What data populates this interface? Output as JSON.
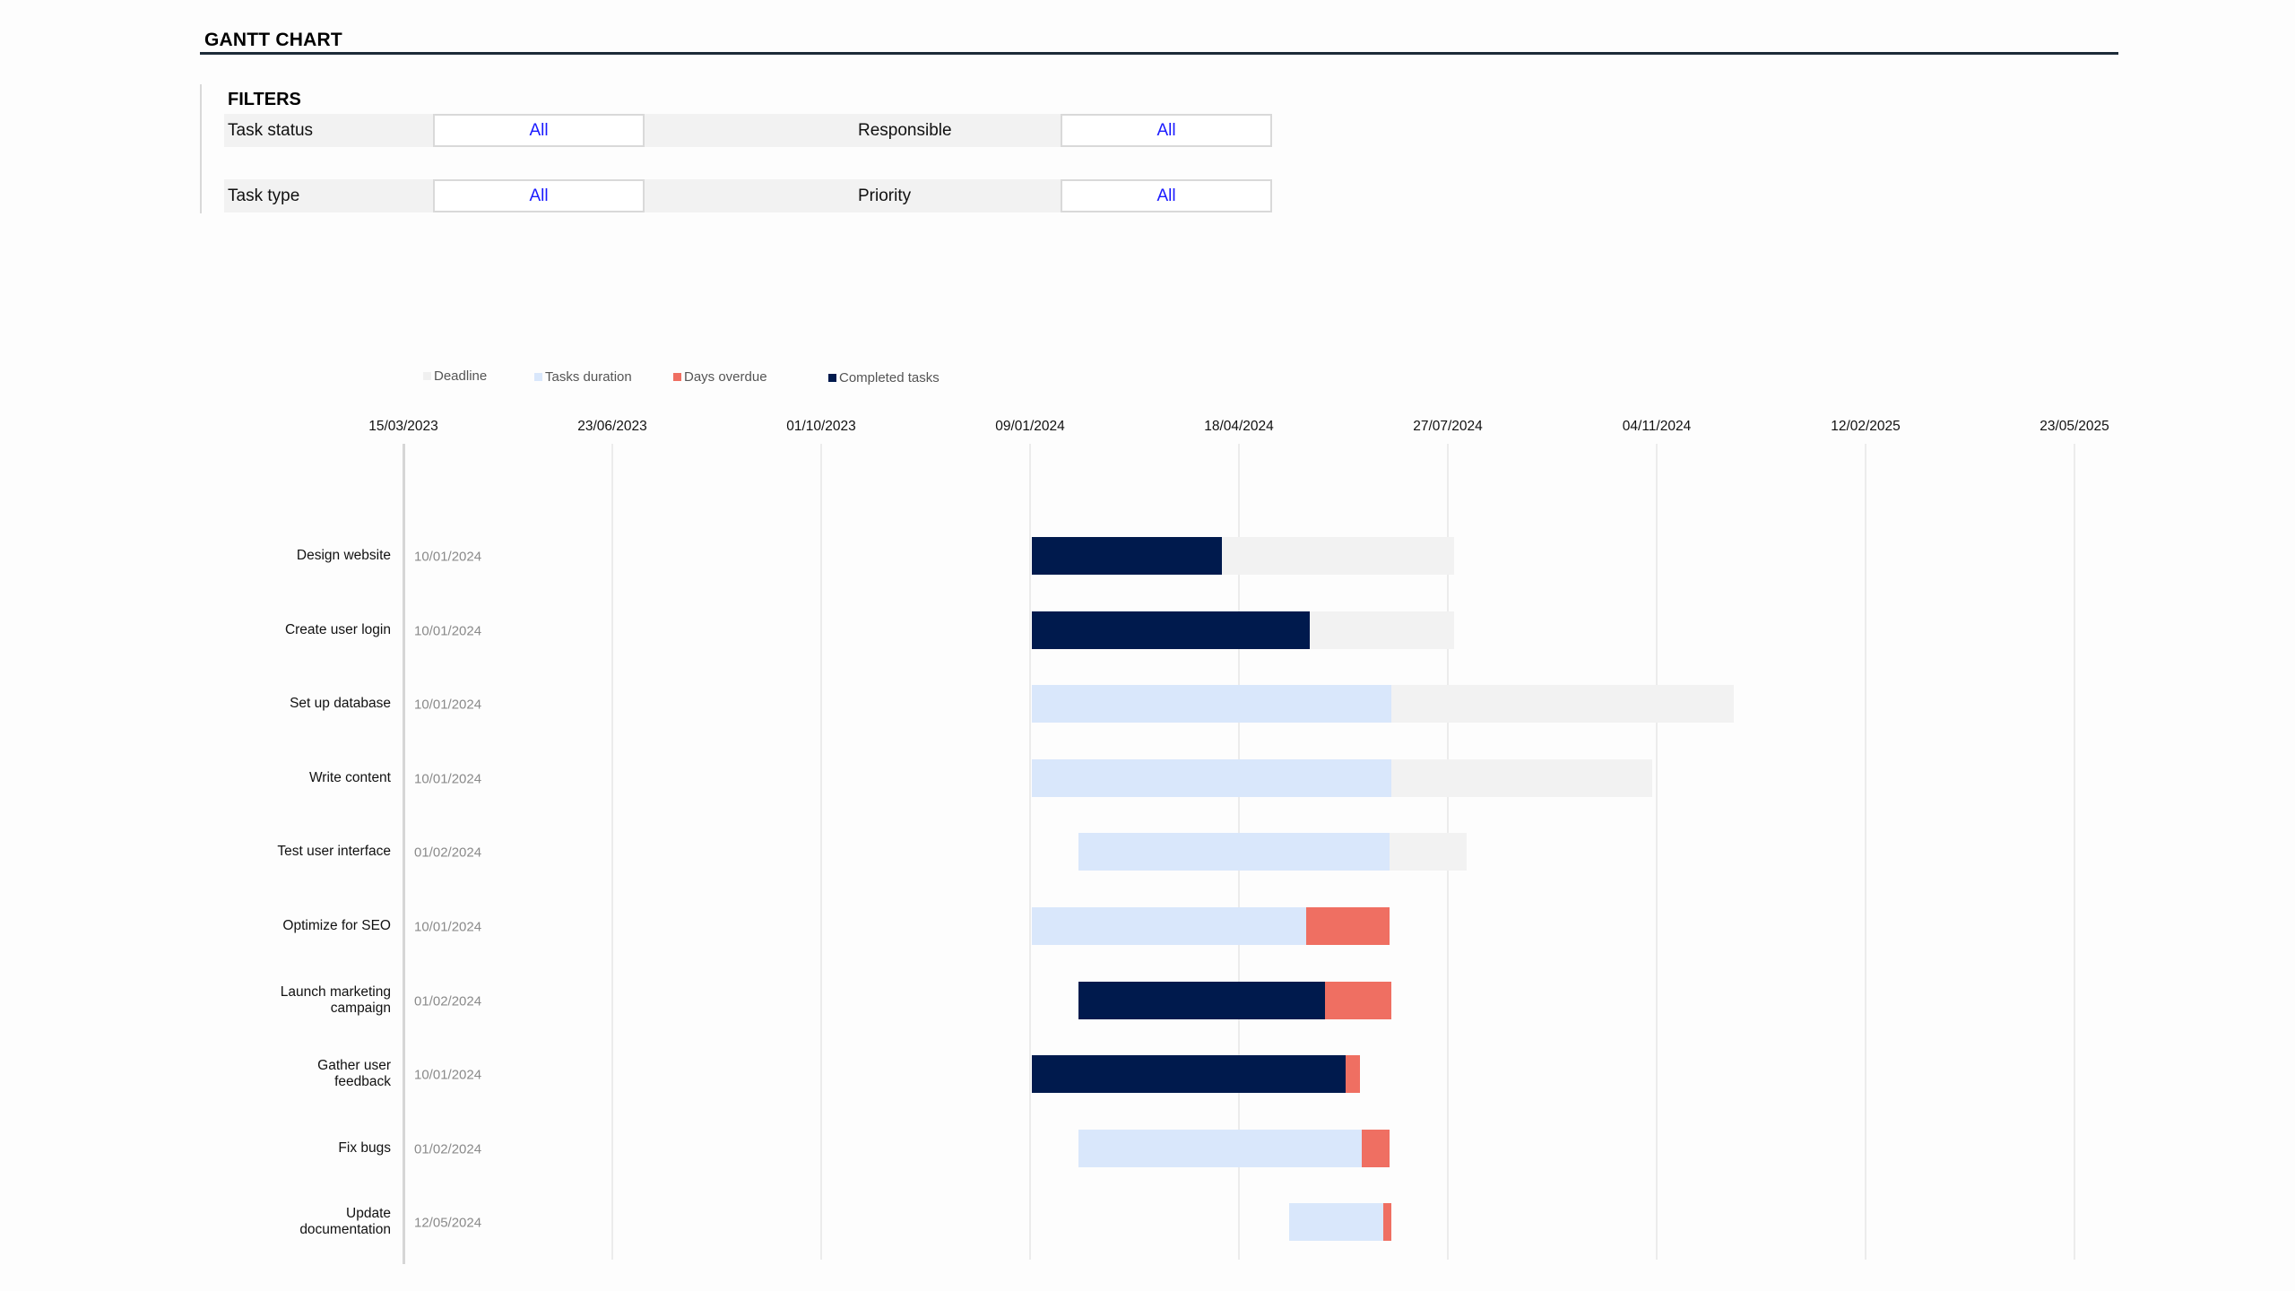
{
  "header": {
    "title": "GANTT CHART"
  },
  "filters": {
    "heading": "FILTERS",
    "items": [
      {
        "label": "Task status",
        "value": "All"
      },
      {
        "label": "Responsible",
        "value": "All"
      },
      {
        "label": "Task type",
        "value": "All"
      },
      {
        "label": "Priority",
        "value": "All"
      }
    ]
  },
  "colors": {
    "deadline": "#f2f2f2",
    "tasks_duration": "#d9e7fb",
    "days_overdue": "#ef6f62",
    "completed_tasks": "#001a4d",
    "filter_value": "#1a1aff"
  },
  "chart_data": {
    "type": "bar",
    "subtype": "gantt-stacked-horizontal",
    "title": "GANTT CHART",
    "legend": [
      {
        "name": "Deadline",
        "color": "#f2f2f2"
      },
      {
        "name": "Tasks duration",
        "color": "#d9e7fb"
      },
      {
        "name": "Days overdue",
        "color": "#ef6f62"
      },
      {
        "name": "Completed tasks",
        "color": "#001a4d"
      }
    ],
    "legend_position": "top",
    "x_axis": {
      "type": "date",
      "position": "top",
      "ticks": [
        "15/03/2023",
        "23/06/2023",
        "01/10/2023",
        "09/01/2024",
        "18/04/2024",
        "27/07/2024",
        "04/11/2024",
        "12/02/2025",
        "23/05/2025"
      ],
      "tick_interval_days": 100,
      "range": [
        "15/03/2023",
        "23/05/2025"
      ],
      "grid": true
    },
    "categories": [
      "Design website",
      "Create user login",
      "Set up database",
      "Write content",
      "Test user interface",
      "Optimize for SEO",
      "Launch marketing campaign",
      "Gather user feedback",
      "Fix bugs",
      "Update documentation"
    ],
    "start_dates": [
      "10/01/2024",
      "10/01/2024",
      "10/01/2024",
      "10/01/2024",
      "01/02/2024",
      "10/01/2024",
      "01/02/2024",
      "10/01/2024",
      "01/02/2024",
      "12/05/2024"
    ],
    "start_offset_days": [
      301,
      301,
      301,
      301,
      323,
      301,
      323,
      301,
      323,
      424
    ],
    "series": [
      {
        "name": "Completed tasks",
        "values": [
          91,
          133,
          0,
          0,
          0,
          0,
          118,
          150,
          0,
          0
        ]
      },
      {
        "name": "Tasks duration",
        "values": [
          0,
          0,
          172,
          172,
          149,
          131,
          0,
          0,
          136,
          45
        ]
      },
      {
        "name": "Days overdue",
        "values": [
          0,
          0,
          0,
          0,
          0,
          40,
          32,
          7,
          13,
          4
        ]
      },
      {
        "name": "Deadline",
        "values": [
          111,
          69,
          164,
          125,
          37,
          0,
          0,
          0,
          0,
          0
        ]
      }
    ],
    "xlabel": "",
    "ylabel": ""
  },
  "tasks": [
    {
      "name": "Design website",
      "name_lines": [
        "Design website"
      ],
      "start": "10/01/2024"
    },
    {
      "name": "Create user login",
      "name_lines": [
        "Create user login"
      ],
      "start": "10/01/2024"
    },
    {
      "name": "Set up database",
      "name_lines": [
        "Set up database"
      ],
      "start": "10/01/2024"
    },
    {
      "name": "Write content",
      "name_lines": [
        "Write content"
      ],
      "start": "10/01/2024"
    },
    {
      "name": "Test user interface",
      "name_lines": [
        "Test user interface"
      ],
      "start": "01/02/2024"
    },
    {
      "name": "Optimize for SEO",
      "name_lines": [
        "Optimize for SEO"
      ],
      "start": "10/01/2024"
    },
    {
      "name": "Launch marketing campaign",
      "name_lines": [
        "Launch marketing",
        "campaign"
      ],
      "start": "01/02/2024"
    },
    {
      "name": "Gather user feedback",
      "name_lines": [
        "Gather user",
        "feedback"
      ],
      "start": "10/01/2024"
    },
    {
      "name": "Fix bugs",
      "name_lines": [
        "Fix bugs"
      ],
      "start": "01/02/2024"
    },
    {
      "name": "Update documentation",
      "name_lines": [
        "Update",
        "documentation"
      ],
      "start": "12/05/2024"
    }
  ]
}
